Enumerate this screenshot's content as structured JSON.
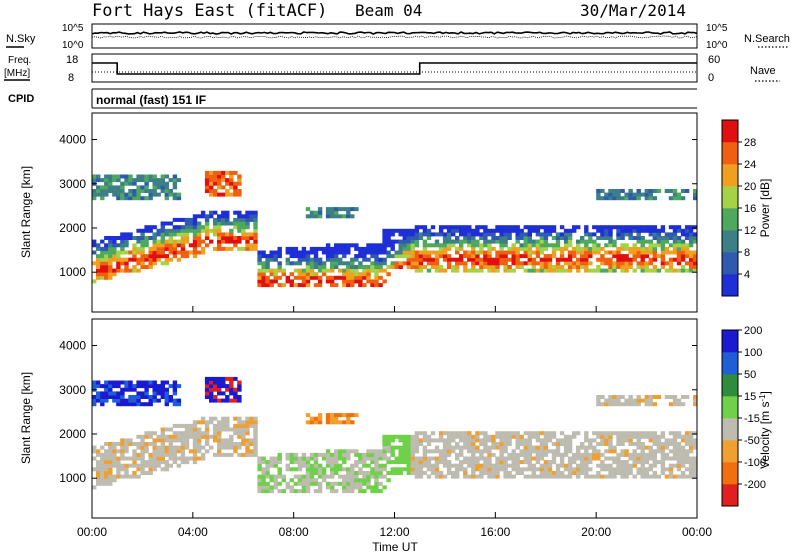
{
  "header": {
    "station": "Fort Hays East (fitACF)",
    "beam": "Beam 04",
    "date": "30/Mar/2014"
  },
  "noise_panel": {
    "left_label": "N.Sky",
    "right_label": "N.Search",
    "left_ticks": [
      "10^5",
      "10^0"
    ],
    "right_ticks": [
      "10^5",
      "10^0"
    ]
  },
  "freq_panel": {
    "left_label_1": "Freq.",
    "left_label_2": "[MHz]",
    "right_label": "Nave",
    "left_ticks": [
      "18",
      "8"
    ],
    "right_ticks": [
      "60",
      "0"
    ]
  },
  "cpid": {
    "label": "CPID",
    "value": "normal (fast) 151 IF"
  },
  "colors": {
    "power_scale": [
      "#1f2fd6",
      "#2f5ab0",
      "#3d7f86",
      "#4ea95e",
      "#a6d247",
      "#f0a020",
      "#f06010",
      "#e01010"
    ],
    "velocity_scale": [
      "#1a1ad0",
      "#1f5fd6",
      "#2e8c3a",
      "#6fd04a",
      "#bebcb0",
      "#f0a030",
      "#f07010",
      "#e02020"
    ]
  },
  "chart_data": [
    {
      "type": "heatmap",
      "name_hint": "power",
      "ylabel": "Slant Range [km]",
      "xlabel": "",
      "ylim": [
        100,
        4600
      ],
      "yticks": [
        "1000",
        "2000",
        "3000",
        "4000"
      ],
      "colorbar_label": "Power [dB]",
      "colorbar_ticks": [
        "4",
        "8",
        "12",
        "16",
        "20",
        "24",
        "28"
      ],
      "colorbar_range": [
        0,
        32
      ]
    },
    {
      "type": "heatmap",
      "name_hint": "velocity",
      "ylabel": "Slant Range [km]",
      "xlabel": "Time UT",
      "ylim": [
        100,
        4600
      ],
      "xlim": [
        0,
        24
      ],
      "yticks": [
        "1000",
        "2000",
        "3000",
        "4000"
      ],
      "xticks": [
        "00:00",
        "04:00",
        "08:00",
        "12:00",
        "16:00",
        "20:00",
        "00:00"
      ],
      "colorbar_label": "Velocity [m s",
      "colorbar_label_sup": "-1",
      "colorbar_label_end": "]",
      "colorbar_ticks": [
        "200",
        "100",
        "50",
        "15",
        "-15",
        "-50",
        "-100",
        "-200"
      ]
    }
  ]
}
